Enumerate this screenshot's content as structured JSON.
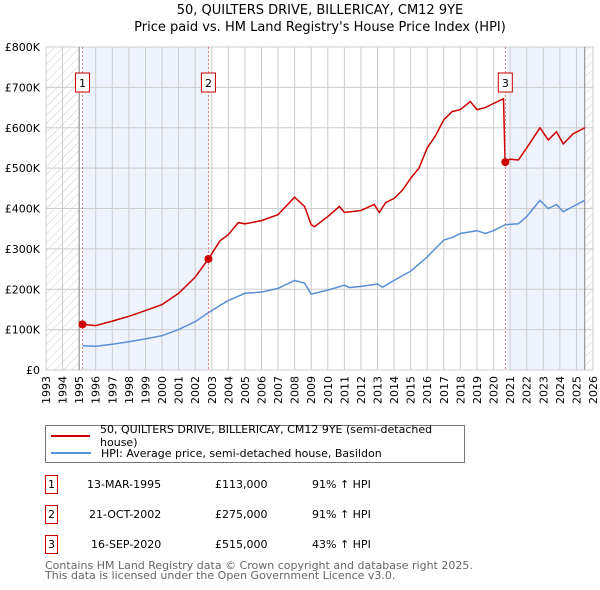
{
  "chart_data": {
    "type": "line",
    "title": "50, QUILTERS DRIVE, BILLERICAY, CM12 9YE",
    "subtitle": "Price paid vs. HM Land Registry's House Price Index (HPI)",
    "xlim": [
      1993,
      2026
    ],
    "ylim": [
      0,
      800000
    ],
    "y_ticks": [
      "£0",
      "£100K",
      "£200K",
      "£300K",
      "£400K",
      "£500K",
      "£600K",
      "£700K",
      "£800K"
    ],
    "x_ticks": [
      "1993",
      "1994",
      "1995",
      "1996",
      "1997",
      "1998",
      "1999",
      "2000",
      "2001",
      "2002",
      "2003",
      "2004",
      "2005",
      "2006",
      "2007",
      "2008",
      "2009",
      "2010",
      "2011",
      "2012",
      "2013",
      "2014",
      "2015",
      "2016",
      "2017",
      "2018",
      "2019",
      "2020",
      "2021",
      "2022",
      "2023",
      "2024",
      "2025",
      "2026"
    ],
    "grid": true,
    "series": [
      {
        "name": "50, QUILTERS DRIVE, BILLERICAY, CM12 9YE (semi-detached house)",
        "color": "#cc0000",
        "x": [
          1995.2,
          1996,
          1997,
          1998,
          1999,
          2000,
          2001,
          2002,
          2002.8,
          2003.5,
          2004,
          2004.6,
          2005,
          2006,
          2007,
          2008,
          2008.6,
          2009,
          2009.2,
          2010,
          2010.7,
          2011,
          2012,
          2012.8,
          2013.1,
          2013.5,
          2014,
          2014.5,
          2015,
          2015.5,
          2016,
          2016.5,
          2017,
          2017.5,
          2018,
          2018.6,
          2019,
          2019.5,
          2020,
          2020.6,
          2020.7,
          2021,
          2021.5,
          2022,
          2022.8,
          2023.3,
          2023.8,
          2024.2,
          2024.8,
          2025.5
        ],
        "y": [
          113000,
          110000,
          121000,
          133000,
          147000,
          162000,
          190000,
          230000,
          275000,
          320000,
          335000,
          365000,
          362000,
          370000,
          385000,
          428000,
          405000,
          360000,
          355000,
          380000,
          405000,
          390000,
          395000,
          410000,
          390000,
          415000,
          425000,
          445000,
          475000,
          500000,
          550000,
          580000,
          620000,
          640000,
          645000,
          665000,
          645000,
          650000,
          660000,
          672000,
          515000,
          522000,
          520000,
          550000,
          600000,
          570000,
          590000,
          560000,
          585000,
          600000
        ]
      },
      {
        "name": "HPI: Average price, semi-detached house, Basildon",
        "color": "#5b8fd6",
        "x": [
          1995.2,
          1996,
          1997,
          1998,
          1999,
          2000,
          2001,
          2002,
          2002.8,
          2003.5,
          2004,
          2005,
          2006,
          2007,
          2008,
          2008.6,
          2009,
          2010,
          2011,
          2011.3,
          2012,
          2013,
          2013.3,
          2014,
          2015,
          2016,
          2017,
          2017.5,
          2018,
          2019,
          2019.5,
          2020,
          2020.7,
          2021.5,
          2022,
          2022.8,
          2023.3,
          2023.8,
          2024.2,
          2024.8,
          2025.5
        ],
        "y": [
          60000,
          59000,
          64000,
          70000,
          77000,
          85000,
          100000,
          120000,
          142000,
          160000,
          172000,
          190000,
          193000,
          202000,
          222000,
          215000,
          188000,
          198000,
          210000,
          204000,
          207000,
          213000,
          205000,
          222000,
          245000,
          280000,
          322000,
          328000,
          338000,
          345000,
          338000,
          345000,
          360000,
          362000,
          380000,
          420000,
          400000,
          410000,
          392000,
          405000,
          420000
        ]
      }
    ],
    "sales": [
      {
        "label": "1",
        "x": 1995.2,
        "date": "13-MAR-1995",
        "price": 113000,
        "price_text": "£113,000",
        "hpi": "91% ↑ HPI"
      },
      {
        "label": "2",
        "x": 2002.8,
        "date": "21-OCT-2002",
        "price": 275000,
        "price_text": "£275,000",
        "hpi": "91% ↑ HPI"
      },
      {
        "label": "3",
        "x": 2020.71,
        "date": "16-SEP-2020",
        "price": 515000,
        "price_text": "£515,000",
        "hpi": "43% ↑ HPI"
      }
    ],
    "shaded_ranges": [
      [
        1995.2,
        2002.8
      ],
      [
        2020.71,
        2025.5
      ]
    ],
    "hatched_ranges": [
      [
        1993,
        1995.0
      ],
      [
        2025.5,
        2026
      ]
    ],
    "legend_position": "bottom"
  },
  "footer": [
    "Contains HM Land Registry data © Crown copyright and database right 2025.",
    "This data is licensed under the Open Government Licence v3.0."
  ]
}
